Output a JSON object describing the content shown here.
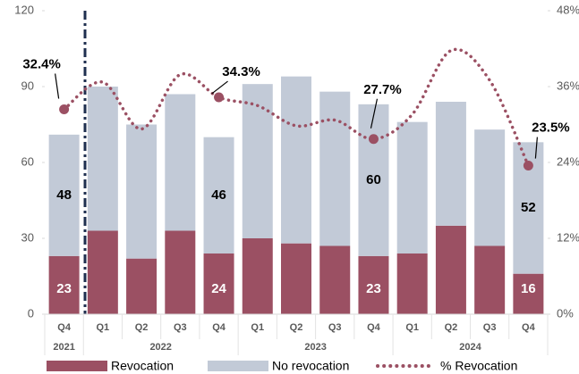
{
  "chart_data": {
    "type": "bar",
    "categories": [
      "Q4",
      "Q1",
      "Q2",
      "Q3",
      "Q4",
      "Q1",
      "Q2",
      "Q3",
      "Q4",
      "Q1",
      "Q2",
      "Q3",
      "Q4"
    ],
    "category_groups": [
      {
        "label": "2021",
        "count": 1
      },
      {
        "label": "2022",
        "count": 4
      },
      {
        "label": "2023",
        "count": 4
      },
      {
        "label": "2024",
        "count": 4
      }
    ],
    "stacked": true,
    "series": [
      {
        "name": "Revocation",
        "color": "#9b5063",
        "values": [
          23,
          33,
          22,
          33,
          24,
          30,
          28,
          27,
          23,
          24,
          35,
          27,
          16
        ],
        "value_labels": [
          "23",
          null,
          null,
          null,
          "24",
          null,
          null,
          null,
          "23",
          null,
          null,
          null,
          "16"
        ]
      },
      {
        "name": "No revocation",
        "color": "#c2cad7",
        "values": [
          48,
          57,
          53,
          54,
          46,
          61,
          66,
          61,
          60,
          52,
          49,
          46,
          52
        ],
        "value_labels": [
          "48",
          null,
          null,
          null,
          "46",
          null,
          null,
          null,
          "60",
          null,
          null,
          null,
          "52"
        ]
      },
      {
        "name": "% Revocation",
        "color": "#9b5063",
        "type": "line",
        "axis": "y2",
        "values": [
          32.4,
          36.7,
          29.3,
          37.9,
          34.3,
          33.0,
          29.8,
          30.7,
          27.7,
          31.6,
          41.7,
          37.0,
          23.5
        ],
        "value_labels": [
          "32.4%",
          null,
          null,
          null,
          "34.3%",
          null,
          null,
          null,
          "27.7%",
          null,
          null,
          null,
          "23.5%"
        ]
      }
    ],
    "ylim": [
      0,
      120
    ],
    "yticks": [
      0,
      30,
      60,
      90,
      120
    ],
    "y2lim": [
      0,
      48
    ],
    "y2ticks": [
      {
        "value": 0,
        "label": "0%"
      },
      {
        "value": 12,
        "label": "12%"
      },
      {
        "value": 24,
        "label": "24%"
      },
      {
        "value": 36,
        "label": "36%"
      },
      {
        "value": 48,
        "label": "48%"
      }
    ],
    "legend": "bottom"
  }
}
